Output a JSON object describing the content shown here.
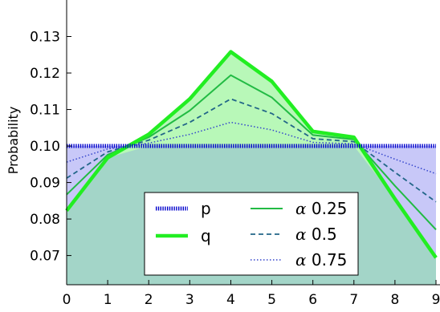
{
  "chart_data": {
    "type": "line",
    "title": "",
    "xlabel": "",
    "ylabel": "Probability",
    "x": [
      0,
      1,
      2,
      3,
      4,
      5,
      6,
      7,
      8,
      9
    ],
    "xlim": [
      0,
      9
    ],
    "ylim": [
      0.062,
      0.14
    ],
    "xticks": [
      "0",
      "1",
      "2",
      "3",
      "4",
      "5",
      "6",
      "7",
      "8",
      "9"
    ],
    "yticks": [
      {
        "value": 0.07,
        "label": "0.07"
      },
      {
        "value": 0.08,
        "label": "0.08"
      },
      {
        "value": 0.09,
        "label": "0.09"
      },
      {
        "value": 0.1,
        "label": "0.10"
      },
      {
        "value": 0.11,
        "label": "0.11"
      },
      {
        "value": 0.12,
        "label": "0.12"
      },
      {
        "value": 0.13,
        "label": "0.13"
      }
    ],
    "grid": false,
    "legend_position": "bottom-center",
    "series": [
      {
        "name": "p",
        "values": [
          0.1,
          0.1,
          0.1,
          0.1,
          0.1,
          0.1,
          0.1,
          0.1,
          0.1,
          0.1
        ],
        "color": "#0000cc",
        "style": "dotted-thick",
        "fill": "#c8c8f8"
      },
      {
        "name": "q",
        "values": [
          0.0823,
          0.0968,
          0.1032,
          0.1129,
          0.1258,
          0.1177,
          0.104,
          0.1024,
          0.0855,
          0.0694
        ],
        "color": "#22ee22",
        "style": "solid-thick",
        "fill": "#b8f8b8"
      },
      {
        "name": "0.25",
        "values": [
          0.0867,
          0.0976,
          0.1024,
          0.1097,
          0.1194,
          0.1133,
          0.103,
          0.1018,
          0.0891,
          0.0771
        ],
        "color": "#22bb44",
        "style": "solid"
      },
      {
        "name": "0.5",
        "values": [
          0.0912,
          0.0984,
          0.1016,
          0.1065,
          0.1129,
          0.1089,
          0.102,
          0.1012,
          0.0928,
          0.0847
        ],
        "color": "#226688",
        "style": "dashed"
      },
      {
        "name": "0.75",
        "values": [
          0.0956,
          0.0992,
          0.1008,
          0.1032,
          0.1065,
          0.1044,
          0.101,
          0.1006,
          0.0964,
          0.0924
        ],
        "color": "#3344cc",
        "style": "dotted"
      }
    ],
    "legend": {
      "symbol": "α",
      "entries": [
        "p",
        "q",
        "0.25",
        "0.5",
        "0.75"
      ]
    },
    "colors": {
      "overlap_fill": "#a3d5c8"
    }
  }
}
